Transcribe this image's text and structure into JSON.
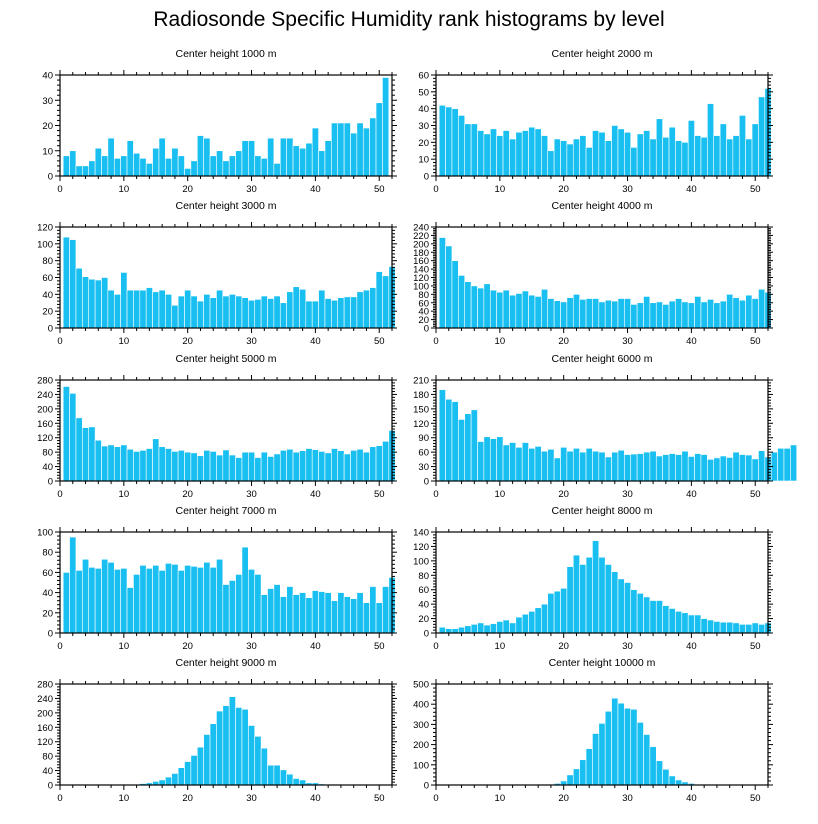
{
  "title": "Radiosonde Specific Humidity rank histograms by level",
  "colors": {
    "bar": "#18bff0",
    "axis": "#000000"
  },
  "chart_data": [
    {
      "type": "bar",
      "title": "Center height 1000 m",
      "xlim": [
        0,
        52
      ],
      "xticks": [
        0,
        10,
        20,
        30,
        40,
        50
      ],
      "ylim": [
        0,
        40
      ],
      "yticks": [
        0,
        10,
        20,
        30,
        40
      ],
      "values": [
        8,
        10,
        4,
        4,
        6,
        11,
        8,
        15,
        7,
        8,
        14,
        9,
        7,
        5,
        11,
        15,
        7,
        11,
        8,
        3,
        6,
        16,
        15,
        8,
        10,
        6,
        8,
        10,
        14,
        14,
        8,
        7,
        15,
        5,
        15,
        15,
        12,
        11,
        13,
        19,
        10,
        14,
        21,
        21,
        21,
        17,
        21,
        19,
        23,
        29,
        39
      ]
    },
    {
      "type": "bar",
      "title": "Center height 2000 m",
      "xlim": [
        0,
        52
      ],
      "xticks": [
        0,
        10,
        20,
        30,
        40,
        50
      ],
      "ylim": [
        0,
        60
      ],
      "yticks": [
        0,
        10,
        20,
        30,
        40,
        50,
        60
      ],
      "values": [
        42,
        41,
        40,
        36,
        31,
        31,
        27,
        25,
        28,
        24,
        27,
        22,
        26,
        27,
        29,
        28,
        24,
        15,
        22,
        21,
        19,
        22,
        24,
        17,
        27,
        26,
        21,
        30,
        28,
        26,
        17,
        25,
        27,
        22,
        34,
        23,
        29,
        21,
        20,
        33,
        24,
        23,
        43,
        24,
        31,
        22,
        24,
        36,
        22,
        31,
        47,
        52
      ]
    },
    {
      "type": "bar",
      "title": "Center height 3000 m",
      "xlim": [
        0,
        52
      ],
      "xticks": [
        0,
        10,
        20,
        30,
        40,
        50
      ],
      "ylim": [
        0,
        120
      ],
      "yticks": [
        0,
        20,
        40,
        60,
        80,
        100,
        120
      ],
      "values": [
        108,
        105,
        71,
        61,
        58,
        57,
        60,
        45,
        40,
        66,
        45,
        45,
        45,
        48,
        43,
        45,
        40,
        27,
        38,
        45,
        38,
        32,
        40,
        36,
        45,
        38,
        40,
        38,
        36,
        33,
        34,
        38,
        35,
        38,
        30,
        43,
        49,
        46,
        32,
        32,
        45,
        35,
        33,
        36,
        37,
        37,
        43,
        45,
        48,
        67,
        62,
        73
      ]
    },
    {
      "type": "bar",
      "title": "Center height 4000 m",
      "xlim": [
        0,
        52
      ],
      "xticks": [
        0,
        10,
        20,
        30,
        40,
        50
      ],
      "ylim": [
        0,
        240
      ],
      "yticks": [
        0,
        20,
        40,
        60,
        80,
        100,
        120,
        140,
        160,
        180,
        200,
        220,
        240
      ],
      "values": [
        215,
        195,
        160,
        125,
        110,
        100,
        95,
        105,
        90,
        85,
        90,
        78,
        82,
        88,
        78,
        75,
        92,
        70,
        65,
        62,
        72,
        80,
        68,
        70,
        70,
        62,
        66,
        64,
        70,
        70,
        56,
        60,
        75,
        60,
        62,
        56,
        64,
        70,
        62,
        60,
        75,
        62,
        68,
        60,
        64,
        80,
        72,
        66,
        78,
        70,
        92,
        85
      ]
    },
    {
      "type": "bar",
      "title": "Center height 5000 m",
      "xlim": [
        0,
        52
      ],
      "xticks": [
        0,
        10,
        20,
        30,
        40,
        50
      ],
      "ylim": [
        0,
        280
      ],
      "yticks": [
        0,
        40,
        80,
        120,
        160,
        200,
        240,
        280
      ],
      "values": [
        262,
        243,
        175,
        148,
        150,
        113,
        97,
        100,
        95,
        100,
        88,
        82,
        85,
        90,
        117,
        95,
        90,
        82,
        85,
        80,
        78,
        70,
        85,
        82,
        72,
        86,
        72,
        65,
        80,
        80,
        65,
        80,
        68,
        75,
        85,
        88,
        80,
        84,
        90,
        87,
        82,
        78,
        90,
        84,
        75,
        85,
        88,
        80,
        95,
        98,
        110,
        140
      ]
    },
    {
      "type": "bar",
      "title": "Center height 6000 m",
      "xlim": [
        0,
        52
      ],
      "xticks": [
        0,
        10,
        20,
        30,
        40,
        50
      ],
      "ylim": [
        0,
        210
      ],
      "yticks": [
        0,
        30,
        60,
        90,
        120,
        150,
        180,
        210
      ],
      "values": [
        190,
        170,
        165,
        128,
        140,
        148,
        82,
        92,
        88,
        92,
        75,
        80,
        70,
        80,
        68,
        72,
        62,
        66,
        48,
        70,
        62,
        68,
        60,
        68,
        62,
        60,
        50,
        60,
        64,
        55,
        56,
        57,
        60,
        62,
        52,
        55,
        57,
        55,
        62,
        51,
        57,
        55,
        45,
        48,
        52,
        49,
        60,
        55,
        54,
        46,
        63,
        50,
        60,
        68,
        68,
        75
      ]
    },
    {
      "type": "bar",
      "title": "Center height 7000 m",
      "xlim": [
        0,
        52
      ],
      "xticks": [
        0,
        10,
        20,
        30,
        40,
        50
      ],
      "ylim": [
        0,
        100
      ],
      "yticks": [
        0,
        20,
        40,
        60,
        80,
        100
      ],
      "values": [
        60,
        95,
        62,
        73,
        65,
        64,
        73,
        70,
        63,
        64,
        45,
        58,
        67,
        64,
        67,
        62,
        69,
        68,
        62,
        67,
        66,
        65,
        70,
        65,
        73,
        48,
        52,
        58,
        85,
        63,
        58,
        38,
        44,
        48,
        36,
        46,
        38,
        40,
        35,
        42,
        41,
        40,
        32,
        40,
        36,
        34,
        40,
        30,
        46,
        30,
        46,
        55
      ]
    },
    {
      "type": "bar",
      "title": "Center height 8000 m",
      "xlim": [
        0,
        52
      ],
      "xticks": [
        0,
        10,
        20,
        30,
        40,
        50
      ],
      "ylim": [
        0,
        140
      ],
      "yticks": [
        0,
        20,
        40,
        60,
        80,
        100,
        120,
        140
      ],
      "values": [
        8,
        6,
        6,
        8,
        10,
        12,
        14,
        11,
        13,
        16,
        18,
        14,
        22,
        26,
        30,
        35,
        40,
        55,
        58,
        62,
        92,
        108,
        95,
        105,
        128,
        105,
        95,
        85,
        75,
        70,
        60,
        55,
        50,
        45,
        45,
        38,
        34,
        30,
        28,
        25,
        25,
        20,
        18,
        16,
        15,
        15,
        14,
        12,
        12,
        14,
        12,
        14
      ]
    },
    {
      "type": "bar",
      "title": "Center height 9000 m",
      "xlim": [
        0,
        52
      ],
      "xticks": [
        0,
        10,
        20,
        30,
        40,
        50
      ],
      "ylim": [
        0,
        280
      ],
      "yticks": [
        0,
        40,
        80,
        120,
        160,
        200,
        240,
        280
      ],
      "values": [
        1,
        1,
        1,
        1,
        1,
        1,
        1,
        1,
        1,
        1,
        2,
        2,
        4,
        6,
        10,
        14,
        22,
        32,
        48,
        65,
        82,
        105,
        140,
        170,
        205,
        220,
        245,
        215,
        210,
        165,
        135,
        102,
        55,
        55,
        42,
        30,
        18,
        14,
        6,
        6,
        3,
        2,
        2,
        2,
        1,
        1,
        1,
        1,
        1,
        1,
        1,
        1
      ]
    },
    {
      "type": "bar",
      "title": "Center height 10000 m",
      "xlim": [
        0,
        52
      ],
      "xticks": [
        0,
        10,
        20,
        30,
        40,
        50
      ],
      "ylim": [
        0,
        500
      ],
      "yticks": [
        0,
        100,
        200,
        300,
        400,
        500
      ],
      "values": [
        1,
        1,
        1,
        1,
        1,
        1,
        1,
        1,
        1,
        1,
        1,
        1,
        1,
        1,
        1,
        1,
        2,
        4,
        8,
        20,
        50,
        80,
        125,
        180,
        255,
        305,
        365,
        430,
        405,
        380,
        375,
        310,
        250,
        190,
        120,
        78,
        45,
        25,
        15,
        8,
        4,
        3,
        2,
        1,
        4,
        1,
        1,
        1,
        1,
        1,
        1,
        1
      ]
    }
  ]
}
